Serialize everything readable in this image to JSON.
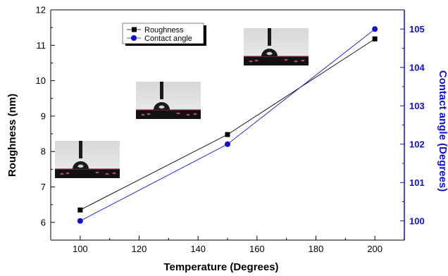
{
  "chart_data": {
    "type": "line",
    "title": "",
    "xlabel": "Temperature (Degrees)",
    "ylabel_left": "Roughness (nm)",
    "ylabel_right": "Contact angle (Degrees)",
    "xlim": [
      90,
      210
    ],
    "ylim_left": [
      5.5,
      12
    ],
    "ylim_right": [
      99.5,
      105.5
    ],
    "x_ticks": [
      100,
      120,
      140,
      160,
      180,
      200
    ],
    "y_left_ticks": [
      6,
      7,
      8,
      9,
      10,
      11,
      12
    ],
    "y_right_ticks": [
      100,
      101,
      102,
      103,
      104,
      105
    ],
    "grid": false,
    "legend_position": "top-center",
    "series": [
      {
        "name": "Roughness",
        "axis": "left",
        "color": "#000000",
        "marker": "square",
        "x": [
          100,
          150,
          200
        ],
        "y": [
          6.35,
          8.48,
          11.18
        ]
      },
      {
        "name": "Contact angle",
        "axis": "right",
        "color": "#1010d0",
        "marker": "circle",
        "x": [
          100,
          150,
          200
        ],
        "y": [
          100.0,
          102.0,
          105.0
        ]
      }
    ],
    "colors": {
      "left_axis": "#000000",
      "right_axis": "#1010d0"
    },
    "annotations": [
      {
        "type": "droplet-photo",
        "near_x": 100
      },
      {
        "type": "droplet-photo",
        "near_x": 150
      },
      {
        "type": "droplet-photo",
        "near_x": 200
      }
    ]
  }
}
